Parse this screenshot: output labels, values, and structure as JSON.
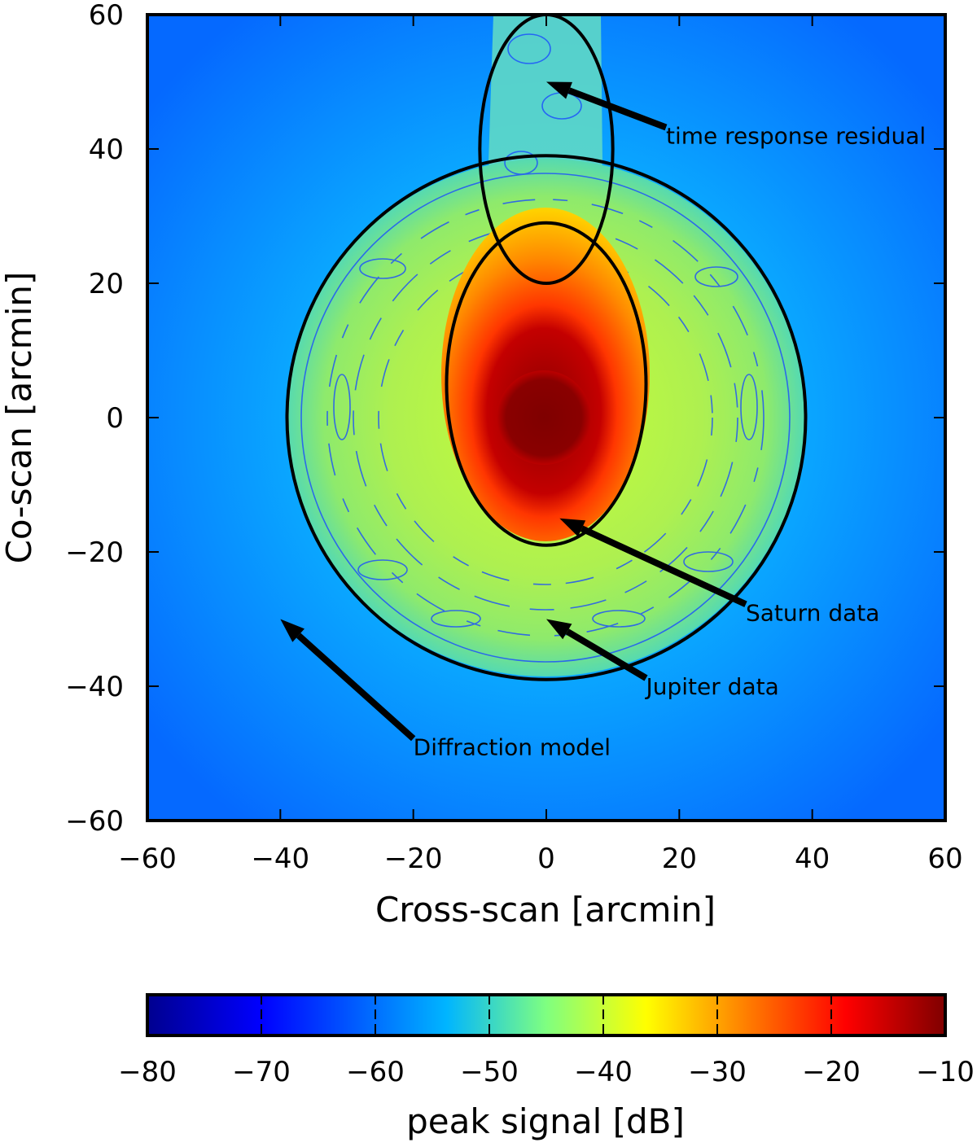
{
  "chart_data": {
    "type": "heatmap",
    "title": "",
    "xlabel": "Cross-scan [arcmin]",
    "ylabel": "Co-scan [arcmin]",
    "xlim": [
      -60,
      60
    ],
    "ylim": [
      -60,
      60
    ],
    "xticks": [
      -60,
      -40,
      -20,
      0,
      20,
      40,
      60
    ],
    "yticks": [
      -60,
      -40,
      -20,
      0,
      20,
      40,
      60
    ],
    "xtick_labels": [
      "−60",
      "−40",
      "−20",
      "0",
      "20",
      "40",
      "60"
    ],
    "ytick_labels": [
      "−60",
      "−40",
      "−20",
      "0",
      "20",
      "40",
      "60"
    ],
    "colorbar": {
      "label": "peak signal [dB]",
      "range": [
        -80,
        -10
      ],
      "ticks": [
        -80,
        -70,
        -60,
        -50,
        -40,
        -30,
        -20,
        -10
      ],
      "tick_labels": [
        "−80",
        "−70",
        "−60",
        "−50",
        "−40",
        "−30",
        "−20",
        "−10"
      ],
      "colors": [
        "#00008f",
        "#0000ff",
        "#00b5ff",
        "#7fff80",
        "#ffff00",
        "#ff7f00",
        "#ff0000",
        "#7f0000"
      ]
    },
    "regions": [
      {
        "name": "Jupiter data",
        "shape": "circle",
        "center": [
          0,
          0
        ],
        "radius": 39
      },
      {
        "name": "Saturn data",
        "shape": "ellipse",
        "center": [
          0,
          5
        ],
        "semi_axes": [
          15,
          24
        ]
      },
      {
        "name": "time response residual",
        "shape": "ellipse",
        "center": [
          0,
          40
        ],
        "semi_axes": [
          10,
          20
        ]
      }
    ],
    "annotations": [
      {
        "text": "time response residual",
        "xy": [
          0,
          50
        ],
        "xytext": [
          18,
          42
        ]
      },
      {
        "text": "Saturn data",
        "xy": [
          2,
          -15
        ],
        "xytext": [
          30,
          -29
        ]
      },
      {
        "text": "Jupiter data",
        "xy": [
          0,
          -30
        ],
        "xytext": [
          15,
          -40
        ]
      },
      {
        "text": "Diffraction model",
        "xy": [
          -40,
          -30
        ],
        "xytext": [
          -20,
          -49
        ]
      }
    ]
  }
}
